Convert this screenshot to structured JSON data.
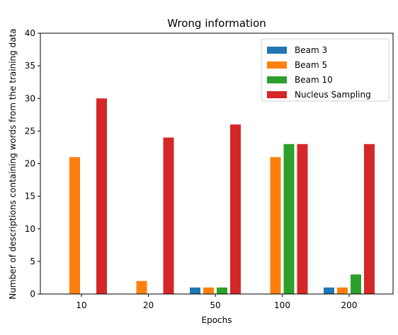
{
  "chart_data": {
    "type": "bar",
    "title": "Wrong information",
    "xlabel": "Epochs",
    "ylabel": "Number of descriptions containing words from the training data",
    "categories": [
      "10",
      "20",
      "50",
      "100",
      "200"
    ],
    "series": [
      {
        "name": "Beam 3",
        "color": "#1f77b4",
        "values": [
          0,
          0,
          1,
          0,
          1
        ]
      },
      {
        "name": "Beam 5",
        "color": "#ff7f0e",
        "values": [
          21,
          2,
          1,
          21,
          1
        ]
      },
      {
        "name": "Beam 10",
        "color": "#2ca02c",
        "values": [
          0,
          0,
          1,
          23,
          3
        ]
      },
      {
        "name": "Nucleus Sampling",
        "color": "#d62728",
        "values": [
          30,
          24,
          26,
          23,
          23
        ]
      }
    ],
    "ylim": [
      0,
      40
    ],
    "yticks": [
      0,
      5,
      10,
      15,
      20,
      25,
      30,
      35,
      40
    ],
    "grid": false,
    "legend_position": "top-right"
  }
}
